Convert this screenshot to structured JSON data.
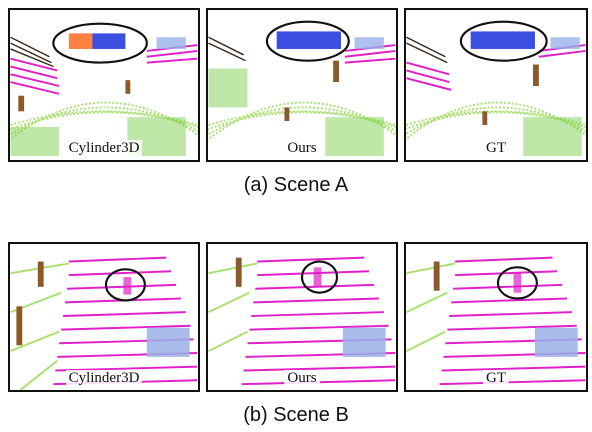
{
  "figure": {
    "scene_a": {
      "caption": "(a) Scene A",
      "panels": [
        {
          "label": "Cylinder3D",
          "detection_color": "#ff8040"
        },
        {
          "label": "Ours",
          "detection_color": "#3a4fe0"
        },
        {
          "label": "GT",
          "detection_color": "#3a4fe0"
        }
      ]
    },
    "scene_b": {
      "caption": "(b) Scene B",
      "panels": [
        {
          "label": "Cylinder3D"
        },
        {
          "label": "Ours"
        },
        {
          "label": "GT"
        }
      ]
    }
  },
  "colors": {
    "road": "#e020c8",
    "vegetation": "#80d050",
    "terrain": "#a8e070",
    "trunk": "#8b5a2b",
    "building": "#3a2a1a",
    "car": "#3a4fe0",
    "other_vehicle": "#9ab0e8",
    "highlight_ring": "#111111"
  }
}
